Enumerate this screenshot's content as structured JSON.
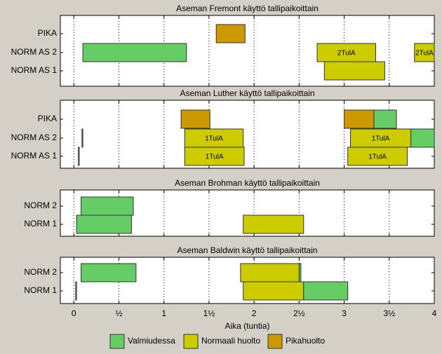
{
  "chart_data": {
    "type": "bar",
    "orientation": "horizontal-gantt",
    "xlabel": "Aika (tuntia)",
    "xlim": [
      -0.15,
      4
    ],
    "x_ticks": [
      0,
      0.5,
      1,
      1.5,
      2,
      2.5,
      3,
      3.5,
      4
    ],
    "x_tick_labels": [
      "0",
      "½",
      "1",
      "1½",
      "2",
      "2½",
      "3",
      "3½",
      "4"
    ],
    "grid": "vertical dotted",
    "legend_position": "bottom",
    "colors": {
      "Valmiudessa": "#66cc66",
      "Normaali huolto": "#cccc00",
      "Pikahuolto": "#cc9900"
    },
    "legend": [
      "Valmiudessa",
      "Normaali huolto",
      "Pikahuolto"
    ],
    "panels": [
      {
        "title": "Aseman Fremont käyttö tallipaikoittain",
        "rows": [
          "PIKA",
          "NORM AS 2",
          "NORM AS 1"
        ],
        "bars": [
          {
            "row": 0,
            "start": 1.58,
            "end": 1.9,
            "category": "Pikahuolto",
            "label": ""
          },
          {
            "row": 1,
            "start": 0.1,
            "end": 1.25,
            "category": "Valmiudessa",
            "label": ""
          },
          {
            "row": 1,
            "start": 2.7,
            "end": 3.35,
            "category": "Normaali huolto",
            "label": "2TulA"
          },
          {
            "row": 1,
            "start": 3.78,
            "end": 4.0,
            "category": "Normaali huolto",
            "label": "2TulA"
          },
          {
            "row": 2,
            "start": 2.78,
            "end": 3.45,
            "category": "Normaali huolto",
            "label": ""
          }
        ]
      },
      {
        "title": "Aseman Luther käyttö tallipaikoittain",
        "rows": [
          "PIKA",
          "NORM AS 2",
          "NORM AS 1"
        ],
        "bars": [
          {
            "row": 0,
            "start": 1.19,
            "end": 1.51,
            "category": "Pikahuolto",
            "label": ""
          },
          {
            "row": 0,
            "start": 3.0,
            "end": 3.33,
            "category": "Pikahuolto",
            "label": ""
          },
          {
            "row": 0,
            "start": 3.33,
            "end": 3.58,
            "category": "Valmiudessa",
            "label": ""
          },
          {
            "row": 1,
            "start": 0.09,
            "end": 0.1,
            "category": "Valmiudessa",
            "label": ""
          },
          {
            "row": 1,
            "start": 1.23,
            "end": 1.88,
            "category": "Normaali huolto",
            "label": "1TulA"
          },
          {
            "row": 1,
            "start": 3.07,
            "end": 3.74,
            "category": "Normaali huolto",
            "label": "1TulA"
          },
          {
            "row": 1,
            "start": 3.74,
            "end": 4.0,
            "category": "Valmiudessa",
            "label": ""
          },
          {
            "row": 2,
            "start": 0.05,
            "end": 0.06,
            "category": "Valmiudessa",
            "label": ""
          },
          {
            "row": 2,
            "start": 1.23,
            "end": 1.89,
            "category": "Normaali huolto",
            "label": "1TulA"
          },
          {
            "row": 2,
            "start": 3.04,
            "end": 3.7,
            "category": "Normaali huolto",
            "label": "1TulA"
          }
        ]
      },
      {
        "title": "Aseman Brohman käyttö tallipaikoittain",
        "rows": [
          "NORM 2",
          "NORM 1"
        ],
        "bars": [
          {
            "row": 0,
            "start": 0.08,
            "end": 0.66,
            "category": "Valmiudessa",
            "label": ""
          },
          {
            "row": 1,
            "start": 0.03,
            "end": 0.64,
            "category": "Valmiudessa",
            "label": ""
          },
          {
            "row": 1,
            "start": 1.88,
            "end": 2.55,
            "category": "Normaali huolto",
            "label": ""
          }
        ]
      },
      {
        "title": "Aseman Baldwin käyttö tallipaikoittain",
        "rows": [
          "NORM 2",
          "NORM 1"
        ],
        "bars": [
          {
            "row": 0,
            "start": 0.08,
            "end": 0.69,
            "category": "Valmiudessa",
            "label": ""
          },
          {
            "row": 0,
            "start": 1.85,
            "end": 2.5,
            "category": "Normaali huolto",
            "label": ""
          },
          {
            "row": 0,
            "start": 2.5,
            "end": 2.52,
            "category": "Valmiudessa",
            "label": ""
          },
          {
            "row": 1,
            "start": 0.02,
            "end": 0.03,
            "category": "Valmiudessa",
            "label": ""
          },
          {
            "row": 1,
            "start": 1.88,
            "end": 2.55,
            "category": "Normaali huolto",
            "label": ""
          },
          {
            "row": 1,
            "start": 2.55,
            "end": 3.04,
            "category": "Valmiudessa",
            "label": ""
          }
        ]
      }
    ]
  }
}
